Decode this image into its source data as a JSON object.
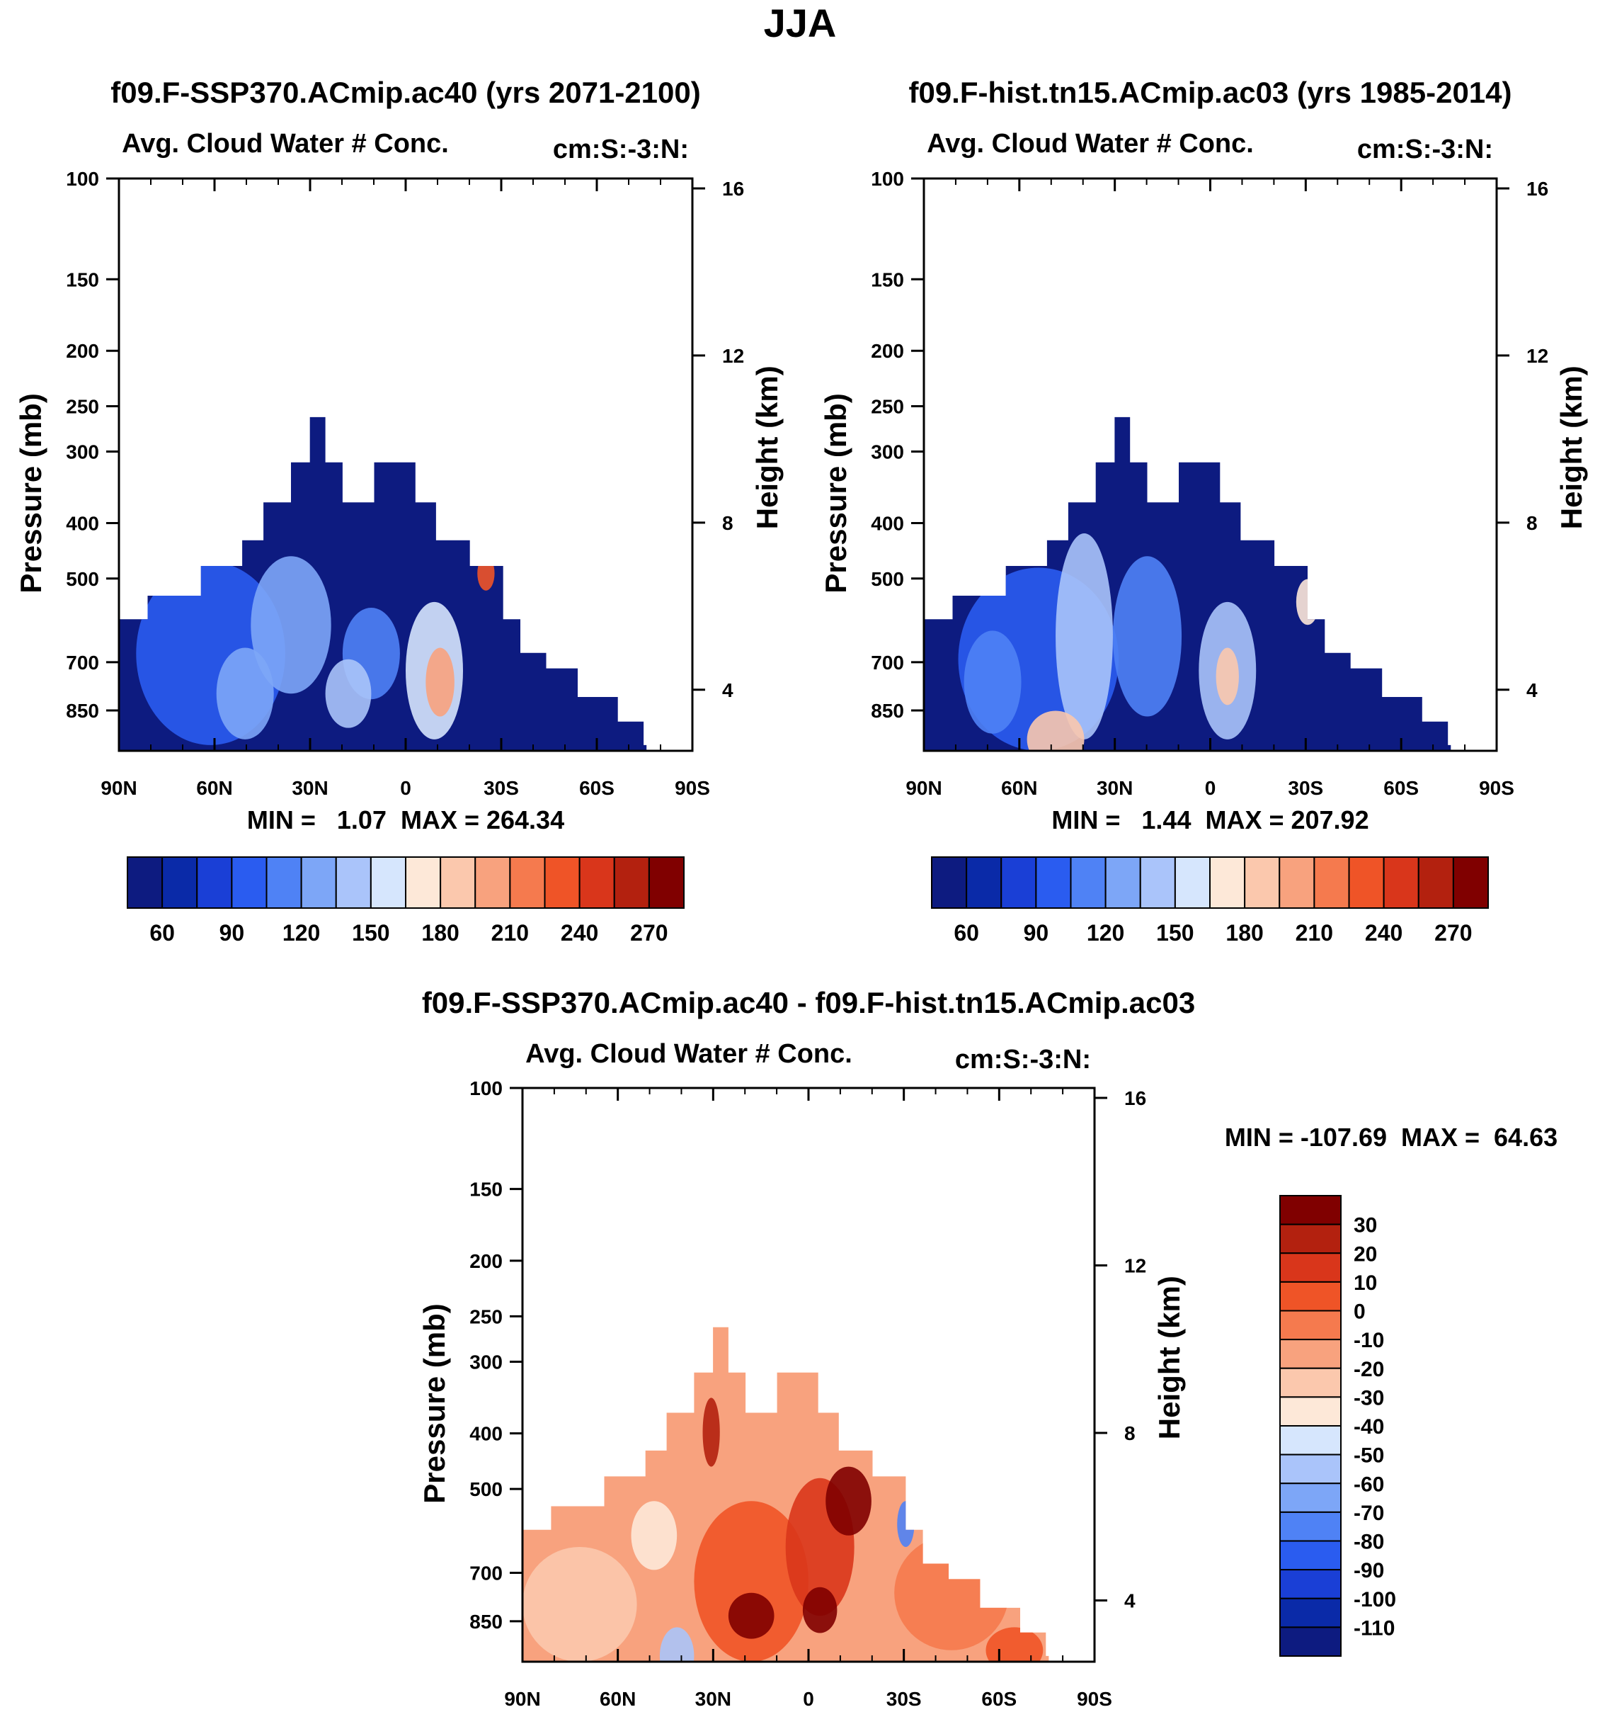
{
  "figure_title": "JJA",
  "chart_data": [
    {
      "type": "heatmap",
      "title": "f09.F-SSP370.ACmip.ac40 (yrs 2071-2100)",
      "subtitle_left": "Avg. Cloud Water # Conc.",
      "subtitle_right": "cm:S:-3:N:",
      "ylabel": "Pressure (mb)",
      "ylabel_right": "Height (km)",
      "x_ticks": [
        "90N",
        "60N",
        "30N",
        "0",
        "30S",
        "60S",
        "90S"
      ],
      "y_ticks": [
        "100",
        "150",
        "200",
        "250",
        "300",
        "400",
        "500",
        "700",
        "850"
      ],
      "y_ticks_right": [
        "16",
        "12",
        "8",
        "4"
      ],
      "stats": "MIN =   1.07  MAX = 264.34",
      "colorbar": {
        "orientation": "horizontal",
        "labels": [
          "60",
          "90",
          "120",
          "150",
          "180",
          "210",
          "240",
          "270"
        ],
        "colors": [
          "#0d1b80",
          "#0a2aa8",
          "#1a3fd6",
          "#2a5cf0",
          "#4f82f5",
          "#7da6f7",
          "#aac4fa",
          "#d6e6fd",
          "#fde8d8",
          "#fbc8ad",
          "#f8a27e",
          "#f57a4e",
          "#ef5427",
          "#d9361b",
          "#b3210f",
          "#800000"
        ]
      },
      "field_levels": [
        {
          "cols": [
            9,
            9,
            9,
            9,
            9,
            9,
            9,
            9,
            9,
            9,
            9,
            9
          ],
          "fill": "#0d1b80"
        },
        {
          "cols": [
            0,
            1,
            2,
            3,
            4,
            5,
            6,
            7,
            8,
            9,
            10,
            11
          ],
          "fill": "#2a5cf0",
          "rows": [
            1,
            5
          ]
        },
        {
          "cols": [
            2,
            3,
            5,
            7
          ],
          "fill": "#7da6f7",
          "rows": [
            2,
            5
          ]
        },
        {
          "cols": [
            7
          ],
          "fill": "#f8a27e",
          "rows": [
            3,
            4
          ]
        }
      ]
    },
    {
      "type": "heatmap",
      "title": "f09.F-hist.tn15.ACmip.ac03 (yrs 1985-2014)",
      "subtitle_left": "Avg. Cloud Water # Conc.",
      "subtitle_right": "cm:S:-3:N:",
      "ylabel": "Pressure (mb)",
      "ylabel_right": "Height (km)",
      "x_ticks": [
        "90N",
        "60N",
        "30N",
        "0",
        "30S",
        "60S",
        "90S"
      ],
      "y_ticks": [
        "100",
        "150",
        "200",
        "250",
        "300",
        "400",
        "500",
        "700",
        "850"
      ],
      "y_ticks_right": [
        "16",
        "12",
        "8",
        "4"
      ],
      "stats": "MIN =   1.44  MAX = 207.92",
      "colorbar": {
        "orientation": "horizontal",
        "labels": [
          "60",
          "90",
          "120",
          "150",
          "180",
          "210",
          "240",
          "270"
        ],
        "colors": [
          "#0d1b80",
          "#0a2aa8",
          "#1a3fd6",
          "#2a5cf0",
          "#4f82f5",
          "#7da6f7",
          "#aac4fa",
          "#d6e6fd",
          "#fde8d8",
          "#fbc8ad",
          "#f8a27e",
          "#f57a4e",
          "#ef5427",
          "#d9361b",
          "#b3210f",
          "#800000"
        ]
      }
    },
    {
      "type": "heatmap",
      "title": "f09.F-SSP370.ACmip.ac40 - f09.F-hist.tn15.ACmip.ac03",
      "subtitle_left": "Avg. Cloud Water # Conc.",
      "subtitle_right": "cm:S:-3:N:",
      "ylabel": "Pressure (mb)",
      "ylabel_right": "Height (km)",
      "x_ticks": [
        "90N",
        "60N",
        "30N",
        "0",
        "30S",
        "60S",
        "90S"
      ],
      "y_ticks": [
        "100",
        "150",
        "200",
        "250",
        "300",
        "400",
        "500",
        "700",
        "850"
      ],
      "y_ticks_right": [
        "16",
        "12",
        "8",
        "4"
      ],
      "stats": "MIN = -107.69  MAX =  64.63",
      "colorbar": {
        "orientation": "vertical",
        "labels": [
          "30",
          "20",
          "10",
          "0",
          "-10",
          "-20",
          "-30",
          "-40",
          "-50",
          "-60",
          "-70",
          "-80",
          "-90",
          "-100",
          "-110"
        ],
        "colors": [
          "#800000",
          "#b3210f",
          "#d9361b",
          "#ef5427",
          "#f57a4e",
          "#f8a27e",
          "#fbc8ad",
          "#fde8d8",
          "#d6e6fd",
          "#aac4fa",
          "#7da6f7",
          "#4f82f5",
          "#2a5cf0",
          "#1a3fd6",
          "#0a2aa8",
          "#0d1b80"
        ]
      }
    }
  ]
}
